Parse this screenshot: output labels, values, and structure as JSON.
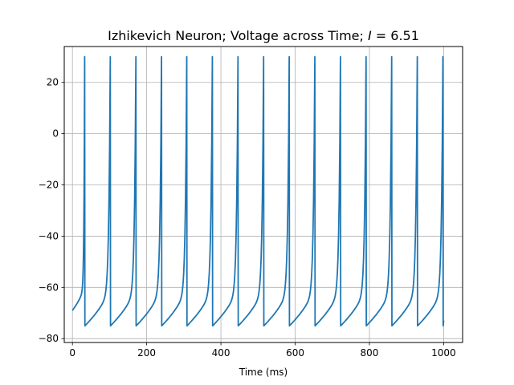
{
  "chart_data": {
    "type": "line",
    "title_main": "Izhikevich Neuron; Voltage across Time; ",
    "title_var": "I",
    "title_value": " = 6.51",
    "xlabel": "Time (ms)",
    "ylabel": "",
    "xlim": [
      -22,
      1051
    ],
    "ylim": [
      -81.5,
      34
    ],
    "grid": true,
    "line_color": "#1f77b4",
    "xticks": [
      0,
      200,
      400,
      600,
      800,
      1000
    ],
    "yticks": [
      20,
      0,
      -20,
      -40,
      -60,
      -80
    ],
    "reset_voltage": -75,
    "peak_voltage": 30,
    "start": {
      "t": 0,
      "v": -69
    },
    "spike_times": [
      33,
      102,
      171,
      240,
      308,
      377,
      446,
      515,
      584,
      653,
      722,
      791,
      860,
      929,
      998
    ],
    "end": {
      "t": 1000,
      "v": -73
    }
  }
}
